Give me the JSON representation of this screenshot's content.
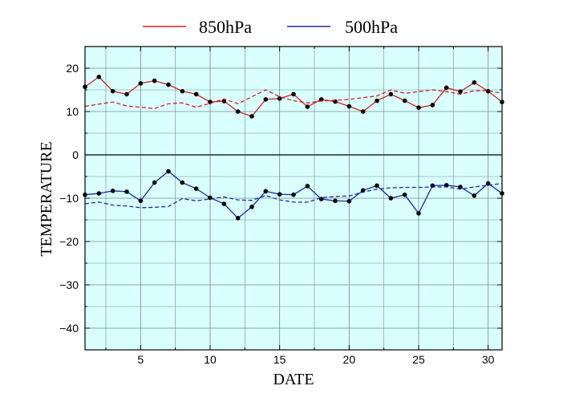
{
  "chart_data": {
    "type": "line",
    "title": "",
    "xlabel": "DATE",
    "ylabel": "TEMPERATURE",
    "xlim": [
      1,
      31
    ],
    "ylim": [
      -45,
      25
    ],
    "xticks": [
      5,
      10,
      15,
      20,
      25,
      30
    ],
    "xtick_labels": [
      "5",
      "10",
      "15",
      "20",
      "25",
      "30"
    ],
    "yticks": [
      -40,
      -30,
      -20,
      -10,
      0,
      10,
      20
    ],
    "ytick_labels": [
      "−40",
      "−30",
      "−20",
      "−10",
      "0",
      "10",
      "20"
    ],
    "x_minor_gridlines": true,
    "y_minor_gridlines": true,
    "grid": true,
    "zero_line": true,
    "background_color": "#d9ffff",
    "legend_position": "top",
    "x": [
      1,
      2,
      3,
      4,
      5,
      6,
      7,
      8,
      9,
      10,
      11,
      12,
      13,
      14,
      15,
      16,
      17,
      18,
      19,
      20,
      21,
      22,
      23,
      24,
      25,
      26,
      27,
      28,
      29,
      30,
      31
    ],
    "series": [
      {
        "name": "850hPa",
        "color": "#d62020",
        "style": "solid",
        "markers": true,
        "marker_color": "#000000",
        "values": [
          15.7,
          18.0,
          14.7,
          14.0,
          16.5,
          17.1,
          16.2,
          14.7,
          14.0,
          12.2,
          12.4,
          10.0,
          8.9,
          12.8,
          13.0,
          14.0,
          11.1,
          12.8,
          12.3,
          11.2,
          10.0,
          12.5,
          14.0,
          12.5,
          10.9,
          11.5,
          15.5,
          14.6,
          16.7,
          14.7,
          12.2
        ]
      },
      {
        "name": "",
        "color": "#d62020",
        "style": "dashed",
        "markers": false,
        "values": [
          11.2,
          11.7,
          12.2,
          11.3,
          11.0,
          10.7,
          11.8,
          12.0,
          11.0,
          11.9,
          12.9,
          11.8,
          13.4,
          15.0,
          13.4,
          12.5,
          12.0,
          12.4,
          12.6,
          12.8,
          13.2,
          13.6,
          15.0,
          14.2,
          14.6,
          15.0,
          14.6,
          14.0,
          14.8,
          14.8,
          14.2
        ]
      },
      {
        "name": "500hPa",
        "color": "#1a2aa0",
        "style": "solid",
        "markers": true,
        "marker_color": "#000000",
        "values": [
          -9.2,
          -8.9,
          -8.3,
          -8.5,
          -10.6,
          -6.4,
          -3.8,
          -6.4,
          -7.8,
          -9.9,
          -11.3,
          -14.6,
          -12.0,
          -8.4,
          -9.1,
          -9.2,
          -7.2,
          -10.2,
          -10.6,
          -10.7,
          -8.2,
          -7.1,
          -10.0,
          -9.2,
          -13.5,
          -7.1,
          -7.0,
          -7.4,
          -9.4,
          -6.6,
          -8.9
        ]
      },
      {
        "name": "",
        "color": "#1a2aa0",
        "style": "dashed",
        "markers": false,
        "values": [
          -11.3,
          -10.9,
          -11.6,
          -11.8,
          -12.2,
          -12.1,
          -11.9,
          -10.1,
          -10.6,
          -10.2,
          -9.7,
          -10.4,
          -10.5,
          -9.4,
          -10.4,
          -10.9,
          -10.9,
          -9.9,
          -9.6,
          -9.5,
          -8.6,
          -7.9,
          -7.6,
          -7.5,
          -7.5,
          -7.4,
          -7.4,
          -7.9,
          -7.4,
          -7.0,
          -6.6
        ]
      }
    ]
  }
}
